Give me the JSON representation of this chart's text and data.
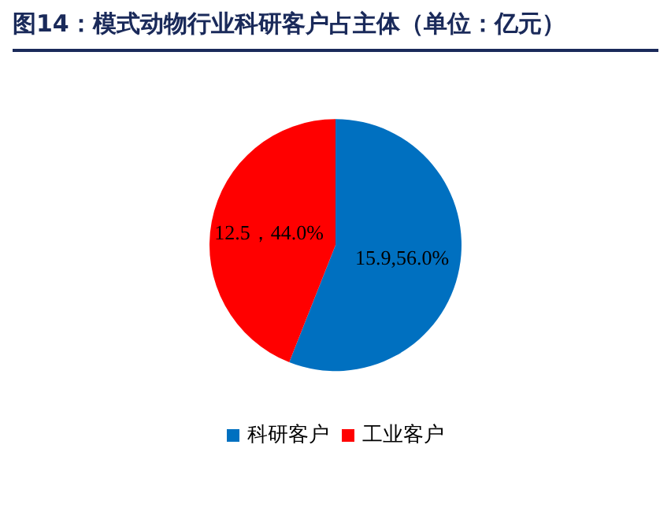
{
  "chart_data": {
    "type": "pie",
    "title": "图14：模式动物行业科研客户占主体（单位：亿元）",
    "categories": [
      "科研客户",
      "工业客户"
    ],
    "values": [
      15.9,
      12.5
    ],
    "colors": [
      "#0070c0",
      "#ff0000"
    ],
    "value_labels": [
      "15.9,56.0%",
      "12.5，44.0%"
    ],
    "legend": "bottom"
  }
}
